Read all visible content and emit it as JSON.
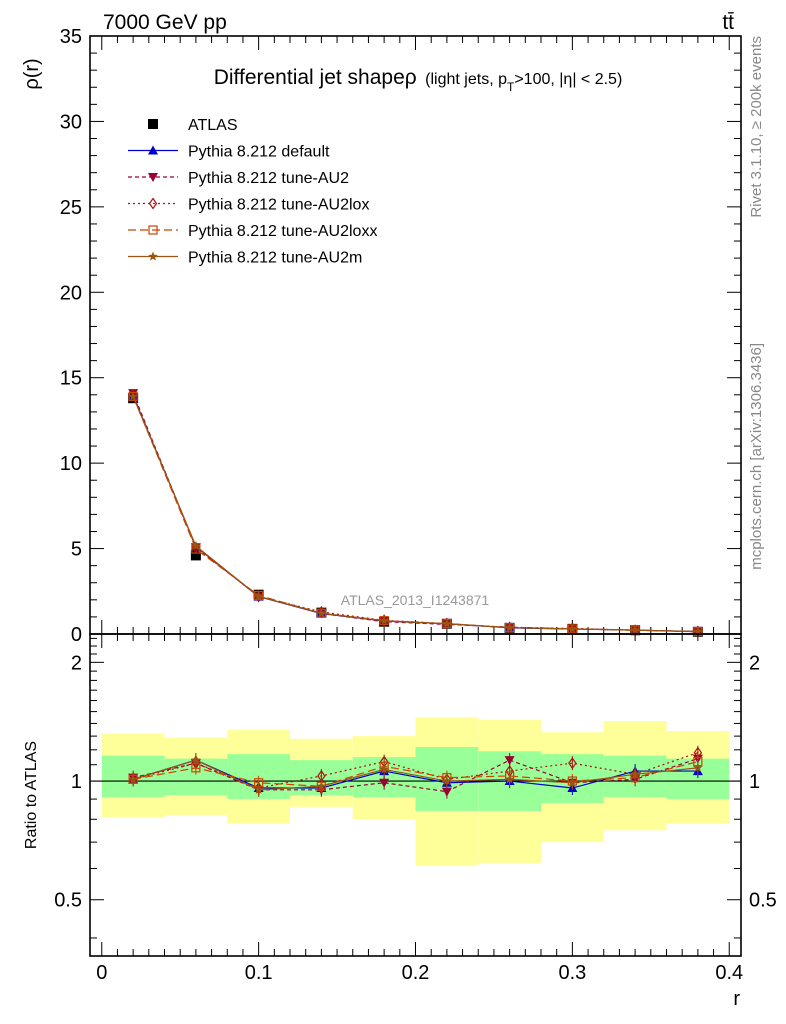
{
  "header": {
    "energy_label": "7000 GeV pp",
    "process_label": "tt̄"
  },
  "side_labels": {
    "rivet": "Rivet 3.1.10, ≥ 200k events",
    "mcplots": "mcplots.cern.ch [arXiv:1306.3436]"
  },
  "chart_data": [
    {
      "type": "line",
      "panel": "main",
      "title_main": "Differential jet shapeρ",
      "title_sub_pre": "(light jets, p",
      "title_sub_idx": "T",
      "title_sub_post": ">100, |η| < 2.5)",
      "ylabel": "ρ(r)",
      "watermark": "ATLAS_2013_I1243871",
      "xlim": [
        -0.0075,
        0.4075
      ],
      "ylim": [
        0,
        35
      ],
      "yticks": [
        0,
        5,
        10,
        15,
        20,
        25,
        30,
        35
      ],
      "yticklabels": [
        "0",
        "5",
        "10",
        "15",
        "20",
        "25",
        "30",
        "35"
      ],
      "x": [
        0.02,
        0.06,
        0.1,
        0.14,
        0.18,
        0.22,
        0.26,
        0.3,
        0.34,
        0.38
      ],
      "legend_position": "top-left",
      "series": [
        {
          "name": "ATLAS",
          "marker": "square",
          "color": "#000000",
          "dash": "none",
          "values": [
            13.8,
            4.6,
            2.3,
            1.25,
            0.72,
            0.6,
            0.36,
            0.3,
            0.22,
            0.13
          ]
        },
        {
          "name": "Pythia 8.212 default",
          "marker": "triangle-up",
          "color": "#0000cc",
          "dash": "solid",
          "values": [
            13.95,
            5.12,
            2.19,
            1.2,
            0.76,
            0.6,
            0.36,
            0.29,
            0.23,
            0.14
          ]
        },
        {
          "name": "Pythia 8.212 tune-AU2",
          "marker": "triangle-down",
          "color": "#990033",
          "dash": "4,3",
          "values": [
            14.1,
            5.08,
            2.2,
            1.2,
            0.72,
            0.56,
            0.4,
            0.3,
            0.22,
            0.14
          ]
        },
        {
          "name": "Pythia 8.212 tune-AU2lox",
          "marker": "diamond-open",
          "color": "#aa1111",
          "dash": "2,3",
          "values": [
            14.0,
            5.06,
            2.2,
            1.29,
            0.8,
            0.61,
            0.38,
            0.33,
            0.22,
            0.15
          ]
        },
        {
          "name": "Pythia 8.212 tune-AU2loxx",
          "marker": "square-open",
          "color": "#cc4400",
          "dash": "8,4",
          "values": [
            13.9,
            4.97,
            2.26,
            1.22,
            0.78,
            0.61,
            0.37,
            0.3,
            0.22,
            0.14
          ]
        },
        {
          "name": "Pythia 8.212 tune-AU2m",
          "marker": "star",
          "color": "#995511",
          "dash": "solid",
          "values": [
            13.9,
            5.15,
            2.2,
            1.22,
            0.77,
            0.6,
            0.37,
            0.3,
            0.23,
            0.14
          ]
        }
      ]
    },
    {
      "type": "line",
      "panel": "ratio",
      "ylabel": "Ratio to ATLAS",
      "xlabel": "r",
      "xlim": [
        -0.0075,
        0.4075
      ],
      "ylim": [
        0.36,
        2.36
      ],
      "yticks": [
        0.5,
        1,
        2
      ],
      "yticklabels": [
        "0.5",
        "1",
        "2"
      ],
      "xticks": [
        0,
        0.1,
        0.2,
        0.3,
        0.4
      ],
      "xticklabels": [
        "0",
        "0.1",
        "0.2",
        "0.3",
        "0.4"
      ],
      "reference_line": 1,
      "bins": [
        [
          0,
          0.04
        ],
        [
          0.04,
          0.08
        ],
        [
          0.08,
          0.12
        ],
        [
          0.12,
          0.16
        ],
        [
          0.16,
          0.2
        ],
        [
          0.2,
          0.24
        ],
        [
          0.24,
          0.28
        ],
        [
          0.28,
          0.32
        ],
        [
          0.32,
          0.36
        ],
        [
          0.36,
          0.4
        ]
      ],
      "band_inner": [
        [
          0.91,
          1.16
        ],
        [
          0.92,
          1.14
        ],
        [
          0.9,
          1.17
        ],
        [
          0.92,
          1.13
        ],
        [
          0.91,
          1.15
        ],
        [
          0.84,
          1.22
        ],
        [
          0.84,
          1.19
        ],
        [
          0.88,
          1.17
        ],
        [
          0.91,
          1.16
        ],
        [
          0.9,
          1.14
        ]
      ],
      "band_outer": [
        [
          0.81,
          1.32
        ],
        [
          0.82,
          1.29
        ],
        [
          0.78,
          1.35
        ],
        [
          0.86,
          1.28
        ],
        [
          0.8,
          1.3
        ],
        [
          0.61,
          1.45
        ],
        [
          0.62,
          1.43
        ],
        [
          0.7,
          1.33
        ],
        [
          0.75,
          1.42
        ],
        [
          0.78,
          1.34
        ]
      ],
      "band_inner_color": "#99ff99",
      "band_outer_color": "#ffff99",
      "x": [
        0.02,
        0.06,
        0.1,
        0.14,
        0.18,
        0.22,
        0.26,
        0.3,
        0.34,
        0.38
      ],
      "series": [
        {
          "name": "Pythia 8.212 default",
          "marker": "triangle-up",
          "color": "#0000cc",
          "dash": "solid",
          "values": [
            1.01,
            1.13,
            0.96,
            0.96,
            1.06,
            0.99,
            1.0,
            0.96,
            1.06,
            1.06
          ]
        },
        {
          "name": "Pythia 8.212 tune-AU2",
          "marker": "triangle-down",
          "color": "#990033",
          "dash": "4,3",
          "values": [
            1.02,
            1.11,
            0.95,
            0.95,
            0.99,
            0.94,
            1.13,
            0.99,
            1.01,
            1.14
          ]
        },
        {
          "name": "Pythia 8.212 tune-AU2lox",
          "marker": "diamond-open",
          "color": "#aa1111",
          "dash": "2,3",
          "values": [
            1.01,
            1.11,
            0.96,
            1.03,
            1.12,
            1.01,
            1.06,
            1.11,
            1.04,
            1.18
          ]
        },
        {
          "name": "Pythia 8.212 tune-AU2loxx",
          "marker": "square-open",
          "color": "#cc4400",
          "dash": "8,4",
          "values": [
            1.01,
            1.08,
            0.99,
            0.97,
            1.09,
            1.02,
            1.03,
            1.0,
            1.02,
            1.12
          ]
        },
        {
          "name": "Pythia 8.212 tune-AU2m",
          "marker": "star",
          "color": "#995511",
          "dash": "solid",
          "values": [
            1.01,
            1.13,
            0.95,
            0.97,
            1.07,
            1.0,
            1.01,
            0.99,
            1.04,
            1.08
          ]
        }
      ]
    }
  ]
}
